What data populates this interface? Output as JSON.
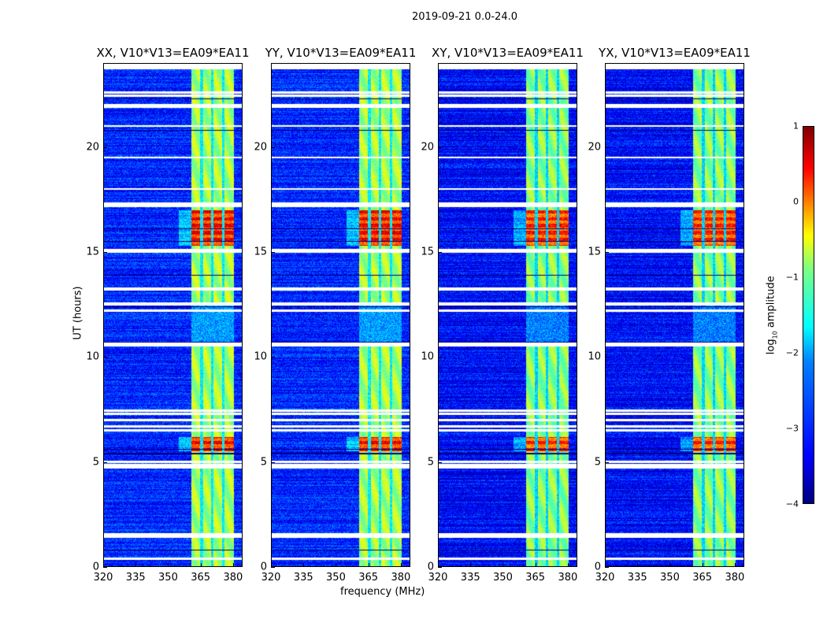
{
  "suptitle": "2019-09-21 0.0-24.0",
  "chart_data": {
    "type": "heatmap",
    "panels": [
      {
        "title": "XX, V10*V13=EA09*EA11"
      },
      {
        "title": "YY, V10*V13=EA09*EA11"
      },
      {
        "title": "XY, V10*V13=EA09*EA11"
      },
      {
        "title": "YX, V10*V13=EA09*EA11"
      }
    ],
    "xlabel": "frequency (MHz)",
    "ylabel": "UT (hours)",
    "xlim": [
      320,
      384.4
    ],
    "ylim": [
      0,
      24
    ],
    "xticks": [
      "320",
      "335",
      "350",
      "365",
      "380"
    ],
    "xtick_values": [
      320,
      335,
      350,
      365,
      380
    ],
    "yticks": [
      "0",
      "5",
      "10",
      "15",
      "20"
    ],
    "ytick_values": [
      0,
      5,
      10,
      15,
      20
    ],
    "colorbar": {
      "label_main": "log",
      "label_sub": "10",
      "label_rest": " amplitude",
      "range": [
        -4,
        1
      ],
      "ticks": [
        "1",
        "0",
        "−1",
        "−2",
        "−3",
        "−4"
      ],
      "tick_values": [
        1,
        0,
        -1,
        -2,
        -3,
        -4
      ],
      "colormap": "jet"
    },
    "background_log_amplitude": -3.2,
    "rfi_band_mhz": [
      360.7,
      380.4
    ],
    "rfi_band_log_amplitude": -1.3,
    "notched_channels_mhz": [
      365.5,
      370.5,
      375.6
    ],
    "strong_rfi_hours": [
      [
        15.3,
        17.0
      ],
      [
        5.5,
        6.2
      ]
    ],
    "strong_rfi_log_amplitude": 0.2,
    "flagged_hours": [
      0.4,
      1.45,
      1.55,
      4.75,
      4.85,
      5.0,
      6.5,
      6.7,
      7.0,
      7.3,
      7.45,
      10.55,
      10.65,
      12.2,
      12.5,
      12.55,
      13.2,
      13.25,
      15.0,
      15.1,
      17.2,
      17.3,
      18.0,
      19.5,
      21.0,
      21.9,
      22.0,
      22.45,
      22.6
    ],
    "dark_hours": [
      0.8,
      5.4,
      5.6,
      10.7,
      12.4,
      13.9,
      15.5,
      16.1,
      20.8,
      22.3
    ]
  }
}
